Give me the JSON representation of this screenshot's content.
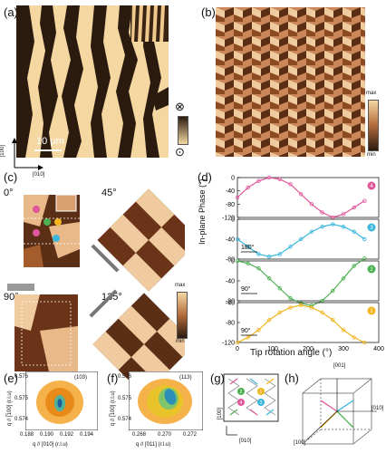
{
  "panels": {
    "a": {
      "label": "(a)",
      "scalebar": "10 μm",
      "axis_up": "[̅100]",
      "axis_right": "[010]",
      "symbol_into": "⊗",
      "symbol_out": "⊙",
      "colors": {
        "light": "#f5d7a1",
        "dark": "#2b1b0f"
      }
    },
    "b": {
      "label": "(b)",
      "cbar_max": "max",
      "cbar_min": "min",
      "colors": {
        "light": "#e7b98a",
        "mid": "#b36a3b",
        "dark": "#3c1f10"
      }
    },
    "c": {
      "label": "(c)",
      "angles": [
        "0°",
        "45°",
        "90°",
        "135°"
      ],
      "cbar_max": "max",
      "cbar_min": "min"
    },
    "d": {
      "label": "(d)",
      "ylabel": "In-plane Phase (°)",
      "xlabel": "Tip rotation angle (°)",
      "xticks": [
        "0",
        "100",
        "200",
        "300",
        "400"
      ],
      "annotations": [
        "180°",
        "90°",
        "90°"
      ]
    },
    "e": {
      "label": "(e)",
      "peak": "(103)",
      "xlabel": "q // [010] (r.l.u)",
      "ylabel": "q // [̅100] (r.l.u)",
      "xticks": [
        "0.188",
        "0.190",
        "0.192",
        "0.194"
      ],
      "yticks": [
        "0.576",
        "0.575",
        "0.574"
      ]
    },
    "f": {
      "label": "(f)",
      "peak": "(113)",
      "xlabel": "q // [011] (r.l.u)",
      "ylabel": "q // [̅100] (r.l.u)",
      "xticks": [
        "0.268",
        "0.270",
        "0.272"
      ],
      "yticks": [
        "0.576",
        "0.575",
        "0.574"
      ]
    },
    "g": {
      "label": "(g)",
      "axis_up": "[̅100]",
      "axis_right": "[010]",
      "domains": [
        "1",
        "2",
        "3",
        "4"
      ]
    },
    "h": {
      "label": "(h)",
      "axes": [
        "[001]",
        "[010]",
        "[100]"
      ]
    }
  },
  "chart_data": [
    {
      "type": "scatter",
      "panel": "d-1",
      "x": [
        0,
        30,
        60,
        90,
        120,
        150,
        180,
        210,
        240,
        270,
        300,
        330,
        360
      ],
      "y": [
        -60,
        -30,
        -10,
        0,
        -5,
        -20,
        -50,
        -80,
        -105,
        -120,
        -110,
        -90,
        -70
      ],
      "ylim": [
        -120,
        0
      ],
      "yticks": [
        "0",
        "-40",
        "-80",
        "-120"
      ],
      "color": "#e0569b",
      "badge": "4"
    },
    {
      "type": "scatter",
      "panel": "d-2",
      "x": [
        0,
        30,
        60,
        90,
        120,
        150,
        180,
        210,
        240,
        270,
        300,
        330,
        360
      ],
      "y": [
        -40,
        -55,
        -70,
        -75,
        -70,
        -55,
        -40,
        -25,
        -15,
        -10,
        -15,
        -25,
        -40
      ],
      "ylim": [
        -80,
        0
      ],
      "yticks": [
        "0",
        "-40",
        "-80"
      ],
      "color": "#3bb7dd",
      "badge": "3"
    },
    {
      "type": "scatter",
      "panel": "d-3",
      "x": [
        0,
        30,
        60,
        90,
        120,
        150,
        180,
        210,
        240,
        270,
        300,
        330,
        360
      ],
      "y": [
        0,
        -5,
        -15,
        -35,
        -55,
        -75,
        -85,
        -90,
        -80,
        -60,
        -35,
        -10,
        5
      ],
      "ylim": [
        -80,
        0
      ],
      "yticks": [
        "0",
        "-40",
        "-80"
      ],
      "color": "#4cb050",
      "badge": "2"
    },
    {
      "type": "scatter",
      "panel": "d-4",
      "x": [
        0,
        30,
        60,
        90,
        120,
        150,
        180,
        210,
        240,
        270,
        300,
        330,
        360
      ],
      "y": [
        -120,
        -110,
        -95,
        -75,
        -60,
        -50,
        -45,
        -50,
        -60,
        -75,
        -95,
        -110,
        -120
      ],
      "ylim": [
        -120,
        -40
      ],
      "yticks": [
        "-40",
        "-80",
        "-120"
      ],
      "color": "#f2b51e",
      "badge": "1"
    }
  ]
}
